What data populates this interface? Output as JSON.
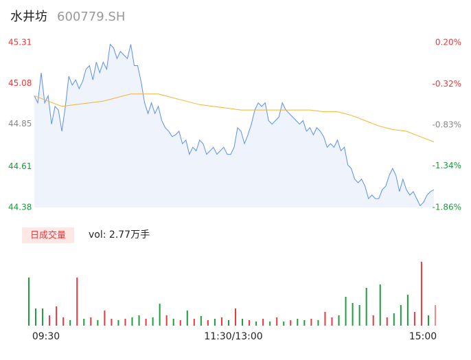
{
  "header": {
    "name": "水井坊",
    "code": "600779.SH"
  },
  "chart_data": [
    {
      "type": "line",
      "series": [
        {
          "name": "price",
          "color": "#5b8ff0",
          "fill": "#eef3fc",
          "values": [
            45.01,
            44.97,
            45.14,
            44.97,
            45.01,
            44.85,
            44.95,
            44.93,
            44.81,
            44.95,
            45.12,
            45.07,
            45.1,
            45.05,
            45.09,
            45.16,
            45.18,
            45.1,
            45.2,
            45.14,
            45.2,
            45.16,
            45.3,
            45.28,
            45.22,
            45.26,
            45.24,
            45.22,
            45.3,
            45.18,
            45.18,
            45.09,
            44.97,
            44.91,
            44.97,
            44.91,
            44.95,
            44.87,
            44.83,
            44.81,
            44.78,
            44.79,
            44.81,
            44.74,
            44.76,
            44.68,
            44.72,
            44.7,
            44.76,
            44.74,
            44.68,
            44.7,
            44.72,
            44.68,
            44.7,
            44.72,
            44.68,
            44.68,
            44.72,
            44.83,
            44.81,
            44.74,
            44.79,
            44.85,
            44.93,
            44.97,
            44.95,
            44.97,
            44.87,
            44.85,
            44.87,
            44.89,
            44.97,
            44.93,
            44.91,
            44.89,
            44.87,
            44.85,
            44.87,
            44.81,
            44.83,
            44.79,
            44.83,
            44.81,
            44.78,
            44.72,
            44.74,
            44.72,
            44.76,
            44.7,
            44.72,
            44.62,
            44.6,
            44.54,
            44.52,
            44.54,
            44.5,
            44.43,
            44.45,
            44.43,
            44.43,
            44.48,
            44.5,
            44.56,
            44.6,
            44.56,
            44.47,
            44.54,
            44.48,
            44.45,
            44.47,
            44.43,
            44.39,
            44.41,
            44.45,
            44.47,
            44.48
          ]
        },
        {
          "name": "average",
          "color": "#f5b431",
          "values": [
            45.01,
            44.98,
            44.95,
            44.96,
            44.97,
            44.98,
            45.0,
            45.02,
            45.02,
            45.02,
            45.0,
            44.98,
            44.96,
            44.95,
            44.94,
            44.93,
            44.93,
            44.93,
            44.93,
            44.93,
            44.93,
            44.92,
            44.92,
            44.9,
            44.87,
            44.84,
            44.82,
            44.81,
            44.78,
            44.75
          ]
        }
      ],
      "ylim": [
        44.38,
        45.31
      ],
      "yticks": [
        45.31,
        45.08,
        44.85,
        44.61,
        44.38
      ],
      "ytick_colors": [
        "#e8383d",
        "#e8383d",
        "#888888",
        "#1c9c3c",
        "#1c9c3c"
      ],
      "y2lim": [
        -1.86,
        0.2
      ],
      "y2ticks": [
        {
          "value": 0.2,
          "label": "0.20%"
        },
        {
          "value": -0.32,
          "label": "-0.32%"
        },
        {
          "value": -0.83,
          "label": "-0.83%"
        },
        {
          "value": -1.34,
          "label": "-1.34%"
        },
        {
          "value": -1.86,
          "label": "-1.86%"
        }
      ],
      "y2tick_colors": [
        "#e8383d",
        "#e8383d",
        "#888888",
        "#1c9c3c",
        "#1c9c3c"
      ]
    },
    {
      "type": "bar",
      "label": "日成交量",
      "summary": "vol: 2.77万手",
      "xlabels": [
        "09:30",
        "11:30/13:00",
        "15:00"
      ],
      "ylim": [
        0,
        100
      ],
      "values": [
        70,
        25,
        25,
        15,
        28,
        12,
        8,
        70,
        10,
        12,
        8,
        22,
        10,
        8,
        10,
        12,
        15,
        10,
        12,
        32,
        15,
        10,
        8,
        22,
        10,
        14,
        8,
        10,
        12,
        8,
        25,
        10,
        8,
        6,
        10,
        6,
        12,
        6,
        8,
        10,
        8,
        10,
        8,
        20,
        12,
        15,
        42,
        33,
        30,
        55,
        15,
        60,
        12,
        18,
        30,
        45,
        20,
        93,
        15,
        30
      ],
      "colors": [
        "#1c9c3c",
        "#1c9c3c",
        "#1c9c3c",
        "#e8383d",
        "#e8383d",
        "#e8383d",
        "#1c9c3c",
        "#e8383d",
        "#1c9c3c",
        "#e8383d",
        "#1c9c3c",
        "#e8383d",
        "#e8383d",
        "#1c9c3c",
        "#e8383d",
        "#1c9c3c",
        "#1c9c3c",
        "#e8383d",
        "#1c9c3c",
        "#1c9c3c",
        "#e8383d",
        "#1c9c3c",
        "#e8383d",
        "#1c9c3c",
        "#e8383d",
        "#1c9c3c",
        "#e8383d",
        "#1c9c3c",
        "#e8383d",
        "#1c9c3c",
        "#e8383d",
        "#1c9c3c",
        "#e8383d",
        "#1c9c3c",
        "#e8383d",
        "#1c9c3c",
        "#e8383d",
        "#1c9c3c",
        "#e8383d",
        "#1c9c3c",
        "#1c9c3c",
        "#e8383d",
        "#1c9c3c",
        "#e8383d",
        "#e8383d",
        "#1c9c3c",
        "#1c9c3c",
        "#1c9c3c",
        "#1c9c3c",
        "#1c9c3c",
        "#e8383d",
        "#1c9c3c",
        "#e8383d",
        "#1c9c3c",
        "#1c9c3c",
        "#1c9c3c",
        "#e8383d",
        "#e8383d",
        "#1c9c3c",
        "#f08a8a"
      ]
    }
  ]
}
